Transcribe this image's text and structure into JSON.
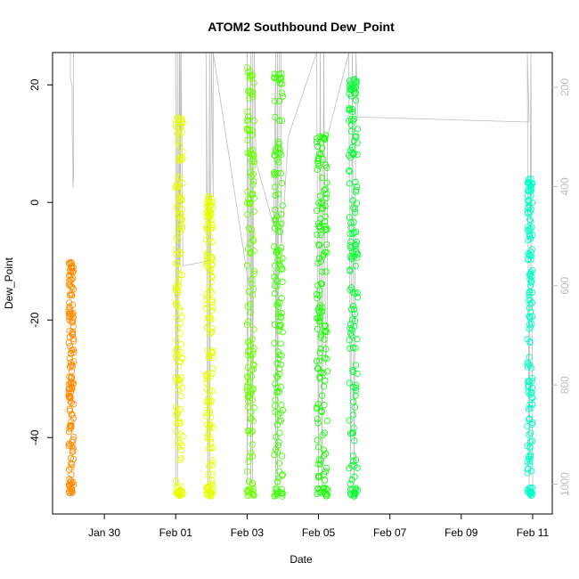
{
  "chart_data": {
    "type": "scatter",
    "title": "ATOM2 Southbound Dew_Point",
    "xlabel": "Date",
    "ylabel": "Dew_Point",
    "x_ticks": [
      "Jan 30",
      "Feb 01",
      "Feb 03",
      "Feb 05",
      "Feb 07",
      "Feb 09",
      "Feb 11"
    ],
    "x_tick_days": [
      30,
      32,
      34,
      36,
      38,
      40,
      42
    ],
    "xlim_days": [
      28.55,
      42.55
    ],
    "y_ticks": [
      20,
      0,
      -20,
      -40
    ],
    "ylim": [
      -53,
      25.5
    ],
    "y2_ticks": [
      200,
      400,
      600,
      800,
      1000
    ],
    "y2lim": [
      1060,
      130
    ],
    "y2_series_color": "#bdbdbd",
    "grid": false,
    "legend": "none",
    "series": [
      {
        "color": "#ff8c00",
        "day_start": 29.0,
        "day_end": 29.15,
        "dew_min": -49.5,
        "dew_max": -10
      },
      {
        "color": "#e6ff00",
        "day_start": 32.0,
        "day_end": 32.2,
        "dew_min": -50,
        "dew_max": 14.5
      },
      {
        "color": "#e6ff00",
        "day_start": 32.85,
        "day_end": 33.05,
        "dew_min": -50,
        "dew_max": 1
      },
      {
        "color": "#6dff00",
        "day_start": 34.0,
        "day_end": 34.2,
        "dew_min": -50,
        "dew_max": 23
      },
      {
        "color": "#3dff00",
        "day_start": 34.75,
        "day_end": 35.0,
        "dew_min": -50,
        "dew_max": 22
      },
      {
        "color": "#16ff00",
        "day_start": 35.95,
        "day_end": 36.25,
        "dew_min": -50,
        "dew_max": 11.5
      },
      {
        "color": "#00ff30",
        "day_start": 36.85,
        "day_end": 37.1,
        "dew_min": -50,
        "dew_max": 21
      },
      {
        "color": "#00ffc8",
        "day_start": 41.85,
        "day_end": 42.0,
        "dew_min": -50,
        "dew_max": 4.5
      }
    ],
    "pressure_trace": [
      [
        29.05,
        130
      ],
      [
        29.05,
        160
      ],
      [
        29.05,
        180
      ],
      [
        29.1,
        200
      ],
      [
        29.1,
        280
      ],
      [
        29.12,
        360
      ],
      [
        29.12,
        380
      ],
      [
        29.12,
        402
      ],
      [
        29.14,
        380
      ],
      [
        29.14,
        130
      ],
      [
        32.0,
        130
      ],
      [
        32.0,
        1000
      ],
      [
        32.05,
        130
      ],
      [
        32.05,
        1000
      ],
      [
        32.1,
        130
      ],
      [
        32.1,
        560
      ],
      [
        32.12,
        130
      ],
      [
        32.12,
        560
      ],
      [
        32.15,
        130
      ],
      [
        32.2,
        560
      ],
      [
        32.9,
        550
      ],
      [
        32.85,
        130
      ],
      [
        32.9,
        1000
      ],
      [
        32.95,
        130
      ],
      [
        32.95,
        1000
      ],
      [
        33.0,
        130
      ],
      [
        33.05,
        420
      ],
      [
        33.05,
        130
      ],
      [
        34.05,
        600
      ],
      [
        34.0,
        130
      ],
      [
        34.0,
        1000
      ],
      [
        34.1,
        130
      ],
      [
        34.1,
        1000
      ],
      [
        34.15,
        130
      ],
      [
        34.15,
        1000
      ],
      [
        34.2,
        130
      ],
      [
        34.25,
        350
      ],
      [
        34.75,
        480
      ],
      [
        34.8,
        130
      ],
      [
        34.8,
        1000
      ],
      [
        34.85,
        130
      ],
      [
        34.85,
        1000
      ],
      [
        34.9,
        130
      ],
      [
        34.95,
        130
      ],
      [
        34.95,
        520
      ],
      [
        35.0,
        480
      ],
      [
        35.15,
        300
      ],
      [
        35.95,
        130
      ],
      [
        36.0,
        1000
      ],
      [
        36.05,
        130
      ],
      [
        36.1,
        1000
      ],
      [
        36.15,
        130
      ],
      [
        36.2,
        760
      ],
      [
        36.25,
        700
      ],
      [
        36.25,
        300
      ],
      [
        36.85,
        130
      ],
      [
        36.9,
        1000
      ],
      [
        36.95,
        130
      ],
      [
        37.0,
        1000
      ],
      [
        37.05,
        130
      ],
      [
        37.1,
        260
      ],
      [
        41.9,
        270
      ],
      [
        41.85,
        130
      ],
      [
        41.9,
        1000
      ],
      [
        41.95,
        130
      ],
      [
        42.0,
        1000
      ]
    ]
  }
}
